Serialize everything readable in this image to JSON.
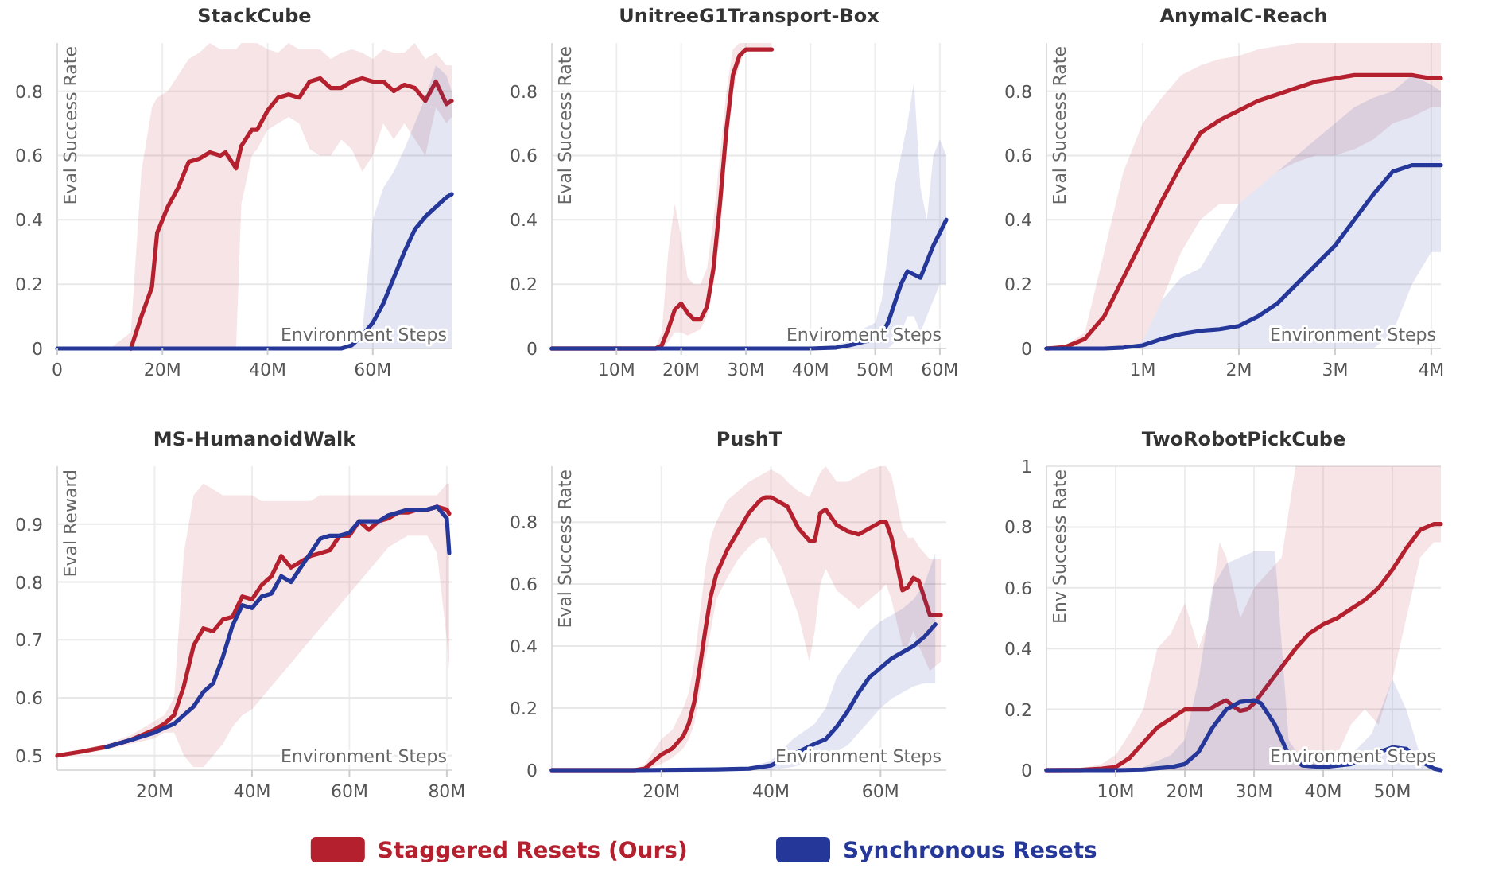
{
  "chart_data": [
    {
      "type": "line",
      "title": "StackCube",
      "xlabel": "Environment Steps",
      "ylabel": "Eval Success Rate",
      "grid": true,
      "legend": "bottom",
      "xlim": [
        0,
        75000000
      ],
      "ylim": [
        0,
        0.95
      ],
      "xticks": [
        0,
        {
          "value": 20000000,
          "label": "20M"
        },
        {
          "value": 40000000,
          "label": "40M"
        },
        {
          "value": 60000000,
          "label": "60M"
        }
      ],
      "yticks": [
        0,
        0.2,
        0.4,
        0.6,
        0.8
      ],
      "x": [
        0,
        5000000.0,
        10000000.0,
        14000000.0,
        16000000.0,
        18000000.0,
        19000000.0,
        21000000.0,
        23000000.0,
        25000000.0,
        27000000.0,
        29000000.0,
        31000000.0,
        32000000.0,
        34000000.0,
        35000000.0,
        37000000.0,
        38000000.0,
        40000000.0,
        42000000.0,
        44000000.0,
        46000000.0,
        48000000.0,
        50000000.0,
        52000000.0,
        54000000.0,
        56000000.0,
        58000000.0,
        60000000.0,
        62000000.0,
        64000000.0,
        66000000.0,
        68000000.0,
        70000000.0,
        72000000.0,
        74000000.0,
        75000000.0
      ],
      "series": [
        {
          "name": "Staggered Resets (Ours)",
          "color": "#b5202e",
          "values": [
            null,
            null,
            null,
            0,
            0.1,
            0.19,
            0.36,
            0.44,
            0.5,
            0.58,
            0.59,
            0.61,
            0.6,
            0.61,
            0.56,
            0.63,
            0.68,
            0.68,
            0.74,
            0.78,
            0.79,
            0.78,
            0.83,
            0.84,
            0.81,
            0.81,
            0.83,
            0.84,
            0.83,
            0.83,
            0.8,
            0.82,
            0.81,
            0.77,
            0.83,
            0.76,
            0.77
          ],
          "lower": [
            0,
            0,
            0,
            0,
            0,
            0,
            0,
            0,
            0,
            0,
            0,
            0,
            0,
            0,
            0,
            0.45,
            0.6,
            0.62,
            0.68,
            0.7,
            0.72,
            0.7,
            0.62,
            0.6,
            0.6,
            0.65,
            0.62,
            0.55,
            0.6,
            0.7,
            0.65,
            0.7,
            0.65,
            0.6,
            0.75,
            0.7,
            0.72
          ],
          "upper": [
            0,
            0,
            0,
            0.05,
            0.55,
            0.75,
            0.78,
            0.8,
            0.85,
            0.9,
            0.92,
            0.95,
            0.93,
            0.93,
            0.93,
            0.95,
            0.95,
            0.95,
            0.93,
            0.92,
            0.95,
            0.93,
            0.93,
            0.93,
            0.9,
            0.92,
            0.93,
            0.92,
            0.9,
            0.93,
            0.92,
            0.92,
            0.95,
            0.9,
            0.92,
            0.88,
            0.88
          ]
        },
        {
          "name": "Synchronous Resets",
          "color": "#25389a",
          "values": [
            0,
            0,
            0,
            0,
            0,
            0,
            0,
            0,
            0,
            0,
            0,
            0,
            0,
            0,
            0,
            0,
            0,
            0,
            0,
            0,
            0,
            0,
            0,
            0,
            0,
            0,
            0.01,
            0.04,
            0.08,
            0.14,
            0.22,
            0.3,
            0.37,
            0.41,
            0.44,
            0.47,
            0.48
          ],
          "lower": [
            0,
            0,
            0,
            0,
            0,
            0,
            0,
            0,
            0,
            0,
            0,
            0,
            0,
            0,
            0,
            0,
            0,
            0,
            0,
            0,
            0,
            0,
            0,
            0,
            0,
            0,
            0,
            0,
            0,
            0,
            0,
            0,
            0,
            0,
            0,
            0,
            0
          ],
          "upper": [
            0,
            0,
            0,
            0,
            0,
            0,
            0,
            0,
            0,
            0,
            0,
            0,
            0,
            0,
            0,
            0,
            0,
            0,
            0,
            0,
            0,
            0,
            0,
            0,
            0,
            0,
            0,
            0.05,
            0.4,
            0.5,
            0.55,
            0.62,
            0.7,
            0.78,
            0.88,
            0.85,
            0.8
          ]
        }
      ]
    },
    {
      "type": "line",
      "title": "UnitreeG1Transport-Box",
      "xlabel": "Enviroment Steps",
      "ylabel": "Eval Success Rate",
      "grid": true,
      "xlim": [
        0,
        61000000
      ],
      "ylim": [
        0,
        0.95
      ],
      "xticks": [
        {
          "value": 10000000,
          "label": "10M"
        },
        {
          "value": 20000000,
          "label": "20M"
        },
        {
          "value": 30000000,
          "label": "30M"
        },
        {
          "value": 40000000,
          "label": "40M"
        },
        {
          "value": 50000000,
          "label": "50M"
        },
        {
          "value": 60000000,
          "label": "60M"
        }
      ],
      "yticks": [
        0,
        0.2,
        0.4,
        0.6,
        0.8
      ],
      "series": [
        {
          "color": "#b5202e",
          "x": [
            0,
            10000000.0,
            16000000.0,
            17000000.0,
            18000000.0,
            19000000.0,
            20000000.0,
            21000000.0,
            22000000.0,
            23000000.0,
            24000000.0,
            25000000.0,
            26000000.0,
            27000000.0,
            28000000.0,
            29000000.0,
            30000000.0,
            32000000.0,
            34000000.0
          ],
          "values": [
            0,
            0,
            0,
            0.01,
            0.06,
            0.12,
            0.14,
            0.11,
            0.09,
            0.09,
            0.13,
            0.25,
            0.45,
            0.68,
            0.85,
            0.91,
            0.93,
            0.93,
            0.93
          ],
          "lower": [
            0,
            0,
            0,
            0,
            0.02,
            0.05,
            0.05,
            0.04,
            0.05,
            0.06,
            0.1,
            0.2,
            0.35,
            0.6,
            0.8,
            0.88,
            0.93,
            0.93,
            0.93
          ],
          "upper": [
            0,
            0,
            0,
            0.05,
            0.3,
            0.45,
            0.35,
            0.22,
            0.2,
            0.2,
            0.25,
            0.4,
            0.6,
            0.8,
            0.93,
            0.95,
            0.95,
            0.95,
            0.95
          ]
        },
        {
          "color": "#25389a",
          "x": [
            0,
            10000000.0,
            20000000.0,
            30000000.0,
            40000000.0,
            44000000.0,
            46000000.0,
            48000000.0,
            50000000.0,
            51000000.0,
            52000000.0,
            53000000.0,
            54000000.0,
            55000000.0,
            56000000.0,
            57000000.0,
            58000000.0,
            59000000.0,
            60000000.0,
            61000000.0
          ],
          "values": [
            0,
            0,
            0,
            0,
            0,
            0.003,
            0.01,
            0.02,
            0.03,
            0.045,
            0.08,
            0.14,
            0.2,
            0.24,
            0.23,
            0.22,
            0.27,
            0.32,
            0.36,
            0.4
          ],
          "lower": [
            0,
            0,
            0,
            0,
            0,
            0,
            0,
            0,
            0,
            0,
            0,
            0.02,
            0.05,
            0.1,
            0.1,
            0.05,
            0.1,
            0.15,
            0.2,
            0.2
          ],
          "upper": [
            0,
            0,
            0,
            0,
            0,
            0.01,
            0.03,
            0.06,
            0.08,
            0.15,
            0.3,
            0.5,
            0.6,
            0.7,
            0.83,
            0.5,
            0.4,
            0.6,
            0.65,
            0.6
          ]
        }
      ]
    },
    {
      "type": "line",
      "title": "AnymalC-Reach",
      "xlabel": "Environment Steps",
      "ylabel": "Eval Success Rate",
      "grid": true,
      "xlim": [
        0,
        4100000
      ],
      "ylim": [
        0,
        0.95
      ],
      "xticks": [
        {
          "value": 1000000,
          "label": "1M"
        },
        {
          "value": 2000000,
          "label": "2M"
        },
        {
          "value": 3000000,
          "label": "3M"
        },
        {
          "value": 4000000,
          "label": "4M"
        }
      ],
      "yticks": [
        0,
        0.2,
        0.4,
        0.6,
        0.8
      ],
      "x": [
        0,
        200000.0,
        400000.0,
        600000.0,
        800000.0,
        1000000.0,
        1200000.0,
        1400000.0,
        1600000.0,
        1800000.0,
        2000000.0,
        2200000.0,
        2400000.0,
        2600000.0,
        2800000.0,
        3000000.0,
        3200000.0,
        3400000.0,
        3600000.0,
        3800000.0,
        4000000.0,
        4100000.0
      ],
      "series": [
        {
          "color": "#b5202e",
          "values": [
            0,
            0.005,
            0.03,
            0.1,
            0.22,
            0.34,
            0.46,
            0.57,
            0.67,
            0.71,
            0.74,
            0.77,
            0.79,
            0.81,
            0.83,
            0.84,
            0.85,
            0.85,
            0.85,
            0.85,
            0.84,
            0.84
          ],
          "lower": [
            0,
            0,
            0,
            0,
            0,
            0.02,
            0.15,
            0.3,
            0.4,
            0.45,
            0.45,
            0.5,
            0.55,
            0.58,
            0.6,
            0.6,
            0.62,
            0.65,
            0.7,
            0.72,
            0.75,
            0.75
          ],
          "upper": [
            0,
            0.01,
            0.05,
            0.3,
            0.55,
            0.7,
            0.78,
            0.85,
            0.88,
            0.9,
            0.91,
            0.93,
            0.94,
            0.95,
            0.95,
            0.95,
            0.95,
            0.95,
            0.95,
            0.95,
            0.95,
            0.95
          ]
        },
        {
          "color": "#25389a",
          "values": [
            0,
            0,
            0,
            0,
            0.003,
            0.01,
            0.03,
            0.045,
            0.055,
            0.06,
            0.07,
            0.1,
            0.14,
            0.2,
            0.26,
            0.32,
            0.4,
            0.48,
            0.55,
            0.57,
            0.57,
            0.57
          ],
          "lower": [
            0,
            0,
            0,
            0,
            0,
            0,
            0,
            0,
            0,
            0,
            0,
            0,
            0,
            0,
            0,
            0,
            0,
            0,
            0.05,
            0.2,
            0.3,
            0.3
          ],
          "upper": [
            0,
            0,
            0,
            0,
            0,
            0.02,
            0.15,
            0.22,
            0.25,
            0.35,
            0.45,
            0.5,
            0.55,
            0.6,
            0.65,
            0.7,
            0.75,
            0.78,
            0.8,
            0.85,
            0.82,
            0.8
          ]
        }
      ]
    },
    {
      "type": "line",
      "title": "MS-HumanoidWalk",
      "xlabel": "Environment Steps",
      "ylabel": "Eval Reward",
      "grid": true,
      "xlim": [
        0,
        81000000
      ],
      "ylim": [
        0.475,
        1
      ],
      "xticks": [
        {
          "value": 20000000,
          "label": "20M"
        },
        {
          "value": 40000000,
          "label": "40M"
        },
        {
          "value": 60000000,
          "label": "60M"
        },
        {
          "value": 80000000,
          "label": "80M"
        }
      ],
      "yticks": [
        0.5,
        0.6,
        0.7,
        0.8,
        0.9
      ],
      "x": [
        0,
        5000000.0,
        10000000.0,
        15000000.0,
        20000000.0,
        22000000.0,
        24000000.0,
        26000000.0,
        28000000.0,
        30000000.0,
        32000000.0,
        34000000.0,
        36000000.0,
        38000000.0,
        40000000.0,
        42000000.0,
        44000000.0,
        46000000.0,
        48000000.0,
        50000000.0,
        52000000.0,
        54000000.0,
        56000000.0,
        58000000.0,
        60000000.0,
        62000000.0,
        64000000.0,
        66000000.0,
        68000000.0,
        70000000.0,
        72000000.0,
        74000000.0,
        76000000.0,
        78000000.0,
        80000000.0,
        80500000.0
      ],
      "series": [
        {
          "color": "#b5202e",
          "values": [
            0.5,
            0.507,
            0.515,
            0.527,
            0.545,
            0.555,
            0.57,
            0.62,
            0.69,
            0.72,
            0.715,
            0.735,
            0.74,
            0.775,
            0.77,
            0.795,
            0.81,
            0.845,
            0.825,
            0.835,
            0.845,
            0.85,
            0.855,
            0.88,
            0.88,
            0.905,
            0.89,
            0.905,
            0.91,
            0.92,
            0.92,
            0.925,
            0.925,
            0.93,
            0.925,
            0.918
          ],
          "lower": [
            0.497,
            0.503,
            0.51,
            0.52,
            0.53,
            0.54,
            0.54,
            0.5,
            0.48,
            0.48,
            0.5,
            0.52,
            0.55,
            0.57,
            0.58,
            0.6,
            0.62,
            0.64,
            0.66,
            0.68,
            0.7,
            0.72,
            0.74,
            0.76,
            0.78,
            0.8,
            0.82,
            0.84,
            0.86,
            0.87,
            0.88,
            0.88,
            0.88,
            0.85,
            0.7,
            0.65
          ],
          "upper": [
            0.503,
            0.511,
            0.52,
            0.535,
            0.56,
            0.57,
            0.6,
            0.85,
            0.95,
            0.97,
            0.96,
            0.95,
            0.95,
            0.95,
            0.95,
            0.94,
            0.94,
            0.94,
            0.94,
            0.94,
            0.94,
            0.95,
            0.95,
            0.95,
            0.95,
            0.95,
            0.95,
            0.95,
            0.95,
            0.95,
            0.95,
            0.95,
            0.95,
            0.95,
            0.97,
            0.97
          ]
        },
        {
          "color": "#25389a",
          "values": [
            null,
            null,
            0.515,
            0.527,
            0.54,
            0.548,
            0.555,
            0.57,
            0.585,
            0.61,
            0.625,
            0.67,
            0.725,
            0.76,
            0.755,
            0.775,
            0.78,
            0.81,
            0.8,
            0.825,
            0.85,
            0.875,
            0.88,
            0.88,
            0.885,
            0.905,
            0.905,
            0.905,
            0.915,
            0.92,
            0.925,
            0.925,
            0.925,
            0.93,
            0.91,
            0.85
          ]
        }
      ]
    },
    {
      "type": "line",
      "title": "PushT",
      "xlabel": "Environment Steps",
      "ylabel": "Eval Success Rate",
      "grid": true,
      "xlim": [
        0,
        72000000
      ],
      "ylim": [
        0,
        0.98
      ],
      "xticks": [
        {
          "value": 20000000,
          "label": "20M"
        },
        {
          "value": 40000000,
          "label": "40M"
        },
        {
          "value": 60000000,
          "label": "60M"
        }
      ],
      "yticks": [
        0,
        0.2,
        0.4,
        0.6,
        0.8
      ],
      "series": [
        {
          "color": "#b5202e",
          "x": [
            0,
            15000000.0,
            17000000.0,
            20000000.0,
            22000000.0,
            24000000.0,
            25000000.0,
            26000000.0,
            27000000.0,
            28000000.0,
            29000000.0,
            30000000.0,
            32000000.0,
            34000000.0,
            36000000.0,
            38000000.0,
            39000000.0,
            40000000.0,
            42000000.0,
            43000000.0,
            45000000.0,
            47000000.0,
            48000000.0,
            49000000.0,
            50000000.0,
            52000000.0,
            54000000.0,
            56000000.0,
            58000000.0,
            60000000.0,
            61000000.0,
            62000000.0,
            64000000.0,
            65000000.0,
            66000000.0,
            67000000.0,
            69000000.0,
            71000000.0
          ],
          "values": [
            0,
            0,
            0.005,
            0.05,
            0.07,
            0.11,
            0.15,
            0.22,
            0.33,
            0.45,
            0.56,
            0.63,
            0.71,
            0.77,
            0.83,
            0.87,
            0.88,
            0.88,
            0.86,
            0.85,
            0.78,
            0.74,
            0.74,
            0.83,
            0.84,
            0.79,
            0.77,
            0.76,
            0.78,
            0.8,
            0.8,
            0.75,
            0.58,
            0.59,
            0.62,
            0.61,
            0.5,
            0.5
          ],
          "lower": [
            0,
            0,
            0,
            0.02,
            0.04,
            0.07,
            0.1,
            0.15,
            0.25,
            0.35,
            0.45,
            0.55,
            0.62,
            0.68,
            0.72,
            0.75,
            0.75,
            0.72,
            0.65,
            0.6,
            0.5,
            0.35,
            0.45,
            0.6,
            0.65,
            0.58,
            0.55,
            0.52,
            0.55,
            0.58,
            0.6,
            0.55,
            0.4,
            0.4,
            0.45,
            0.4,
            0.32,
            0.35
          ],
          "upper": [
            0,
            0,
            0.02,
            0.1,
            0.13,
            0.2,
            0.25,
            0.35,
            0.5,
            0.65,
            0.75,
            0.8,
            0.87,
            0.9,
            0.93,
            0.95,
            0.96,
            0.97,
            0.95,
            0.93,
            0.9,
            0.88,
            0.92,
            0.96,
            0.98,
            0.93,
            0.93,
            0.95,
            0.97,
            0.98,
            0.98,
            0.95,
            0.78,
            0.75,
            0.75,
            0.72,
            0.68,
            0.68
          ]
        },
        {
          "color": "#25389a",
          "x": [
            0,
            15000000.0,
            30000000.0,
            36000000.0,
            40000000.0,
            44000000.0,
            48000000.0,
            50000000.0,
            52000000.0,
            54000000.0,
            56000000.0,
            58000000.0,
            60000000.0,
            62000000.0,
            64000000.0,
            66000000.0,
            68000000.0,
            70000000.0
          ],
          "values": [
            0,
            0,
            0.002,
            0.005,
            0.015,
            0.05,
            0.085,
            0.1,
            0.14,
            0.19,
            0.25,
            0.3,
            0.33,
            0.36,
            0.38,
            0.4,
            0.43,
            0.47
          ],
          "lower": [
            0,
            0,
            0,
            0,
            0,
            0.01,
            0.03,
            0.05,
            0.06,
            0.08,
            0.12,
            0.16,
            0.2,
            0.23,
            0.25,
            0.27,
            0.28,
            0.28
          ],
          "upper": [
            0,
            0,
            0.005,
            0.01,
            0.03,
            0.1,
            0.15,
            0.2,
            0.3,
            0.35,
            0.4,
            0.45,
            0.48,
            0.5,
            0.52,
            0.55,
            0.6,
            0.7
          ]
        }
      ]
    },
    {
      "type": "line",
      "title": "TwoRobotPickCube",
      "xlabel": "Environment Steps",
      "ylabel": "Env Success Rate",
      "grid": true,
      "xlim": [
        0,
        57000000
      ],
      "ylim": [
        0,
        1
      ],
      "xticks": [
        {
          "value": 10000000,
          "label": "10M"
        },
        {
          "value": 20000000,
          "label": "20M"
        },
        {
          "value": 30000000,
          "label": "30M"
        },
        {
          "value": 40000000,
          "label": "40M"
        },
        {
          "value": 50000000,
          "label": "50M"
        }
      ],
      "yticks": [
        0,
        0.2,
        0.4,
        0.6,
        0.8,
        1
      ],
      "series": [
        {
          "color": "#b5202e",
          "x": [
            0,
            5000000.0,
            8000000.0,
            10000000.0,
            12000000.0,
            14000000.0,
            16000000.0,
            18000000.0,
            20000000.0,
            22000000.0,
            23500000.0,
            25000000.0,
            26000000.0,
            27000000.0,
            28000000.0,
            29000000.0,
            30000000.0,
            32000000.0,
            34000000.0,
            36000000.0,
            38000000.0,
            40000000.0,
            42000000.0,
            44000000.0,
            46000000.0,
            48000000.0,
            50000000.0,
            52000000.0,
            54000000.0,
            56000000.0,
            57000000.0
          ],
          "values": [
            0,
            0.001,
            0.005,
            0.01,
            0.04,
            0.09,
            0.14,
            0.17,
            0.2,
            0.2,
            0.2,
            0.22,
            0.23,
            0.21,
            0.195,
            0.2,
            0.22,
            0.28,
            0.34,
            0.4,
            0.45,
            0.48,
            0.5,
            0.53,
            0.56,
            0.6,
            0.66,
            0.73,
            0.79,
            0.81,
            0.81
          ],
          "lower": [
            0,
            0,
            0,
            0,
            0,
            0,
            0,
            0,
            0,
            0,
            0,
            0,
            0,
            0,
            0,
            0,
            0,
            0,
            0,
            0,
            0,
            0.02,
            0.05,
            0.15,
            0.2,
            0.15,
            0.3,
            0.5,
            0.7,
            0.75,
            0.75
          ],
          "upper": [
            0,
            0.005,
            0.02,
            0.05,
            0.12,
            0.2,
            0.4,
            0.45,
            0.55,
            0.4,
            0.5,
            0.75,
            0.7,
            0.6,
            0.5,
            0.55,
            0.6,
            0.65,
            0.7,
            1,
            1,
            1,
            1,
            1,
            1,
            1,
            1,
            1,
            1,
            1,
            1
          ]
        },
        {
          "color": "#25389a",
          "x": [
            0,
            10000000.0,
            14000000.0,
            18000000.0,
            20000000.0,
            22000000.0,
            24000000.0,
            26000000.0,
            28000000.0,
            30000000.0,
            31000000.0,
            33000000.0,
            35000000.0,
            37000000.0,
            40000000.0,
            44000000.0,
            47000000.0,
            50000000.0,
            52000000.0,
            54000000.0,
            56000000.0,
            57000000.0
          ],
          "values": [
            0,
            0,
            0.002,
            0.01,
            0.02,
            0.06,
            0.14,
            0.2,
            0.225,
            0.23,
            0.22,
            0.15,
            0.05,
            0.015,
            0.01,
            0.02,
            0.05,
            0.075,
            0.07,
            0.03,
            0.005,
            0
          ],
          "lower": [
            0,
            0,
            0,
            0,
            0,
            0,
            0,
            0,
            0,
            0,
            0,
            0,
            0,
            0,
            0,
            0,
            0,
            0,
            0,
            0,
            0,
            0
          ],
          "upper": [
            0,
            0,
            0.01,
            0.05,
            0.1,
            0.3,
            0.6,
            0.68,
            0.7,
            0.72,
            0.72,
            0.72,
            0.1,
            0.03,
            0.02,
            0.05,
            0.12,
            0.3,
            0.2,
            0.05,
            0.01,
            0.01
          ]
        }
      ]
    }
  ]
}
